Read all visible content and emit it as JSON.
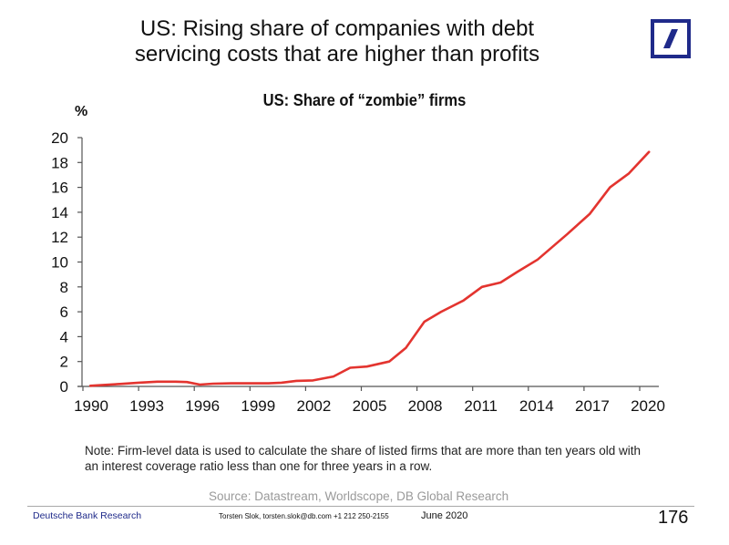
{
  "slide": {
    "title_line1": "US: Rising share of companies with debt",
    "title_line2": "servicing costs that are higher than profits",
    "logo": "deutsche-bank-logo",
    "note_line1": "Note: Firm-level data is used to calculate the share of listed firms that are more than ten years old with",
    "note_line2": "an interest coverage ratio less than one for three years in a row.",
    "source": "Source: Datastream, Worldscope, DB Global Research",
    "footer_brand": "Deutsche Bank Research",
    "footer_contact": "Torsten Slok, torsten.slok@db.com  +1 212 250-2155",
    "footer_date": "June 2020",
    "page_number": "176"
  },
  "colors": {
    "line": "#e3342f",
    "brand_blue": "#1f2a8a",
    "axis": "#555555"
  },
  "chart_data": {
    "type": "line",
    "title": "US: Share of “zombie” firms",
    "ylabel": "%",
    "xlabel": "",
    "ylim": [
      0,
      20
    ],
    "xlim": [
      1990,
      2021
    ],
    "yticks": [
      0,
      2,
      4,
      6,
      8,
      10,
      12,
      14,
      16,
      18,
      20
    ],
    "xticks": [
      1990,
      1993,
      1996,
      1999,
      2002,
      2005,
      2008,
      2011,
      2014,
      2017,
      2020
    ],
    "grid": false,
    "legend": null,
    "series": [
      {
        "name": "Share of zombie firms",
        "x": [
          1990.4,
          1991,
          1992,
          1993,
          1994,
          1995,
          1995.6,
          1996.3,
          1997,
          1998,
          1999,
          2000,
          2000.7,
          2001.5,
          2002.4,
          2003.5,
          2004.4,
          2005.3,
          2006.5,
          2007.4,
          2008.4,
          2009.3,
          2010.5,
          2011.5,
          2012.5,
          2013.4,
          2014.5,
          2016.1,
          2017.3,
          2018.4,
          2019.4,
          2020.5
        ],
        "values": [
          0.05,
          0.1,
          0.2,
          0.3,
          0.38,
          0.38,
          0.35,
          0.15,
          0.22,
          0.25,
          0.25,
          0.25,
          0.3,
          0.45,
          0.48,
          0.8,
          1.5,
          1.6,
          2.0,
          3.1,
          5.2,
          6.0,
          6.9,
          8.0,
          8.35,
          9.2,
          10.2,
          12.25,
          13.85,
          16.0,
          17.1,
          18.85
        ]
      }
    ]
  }
}
